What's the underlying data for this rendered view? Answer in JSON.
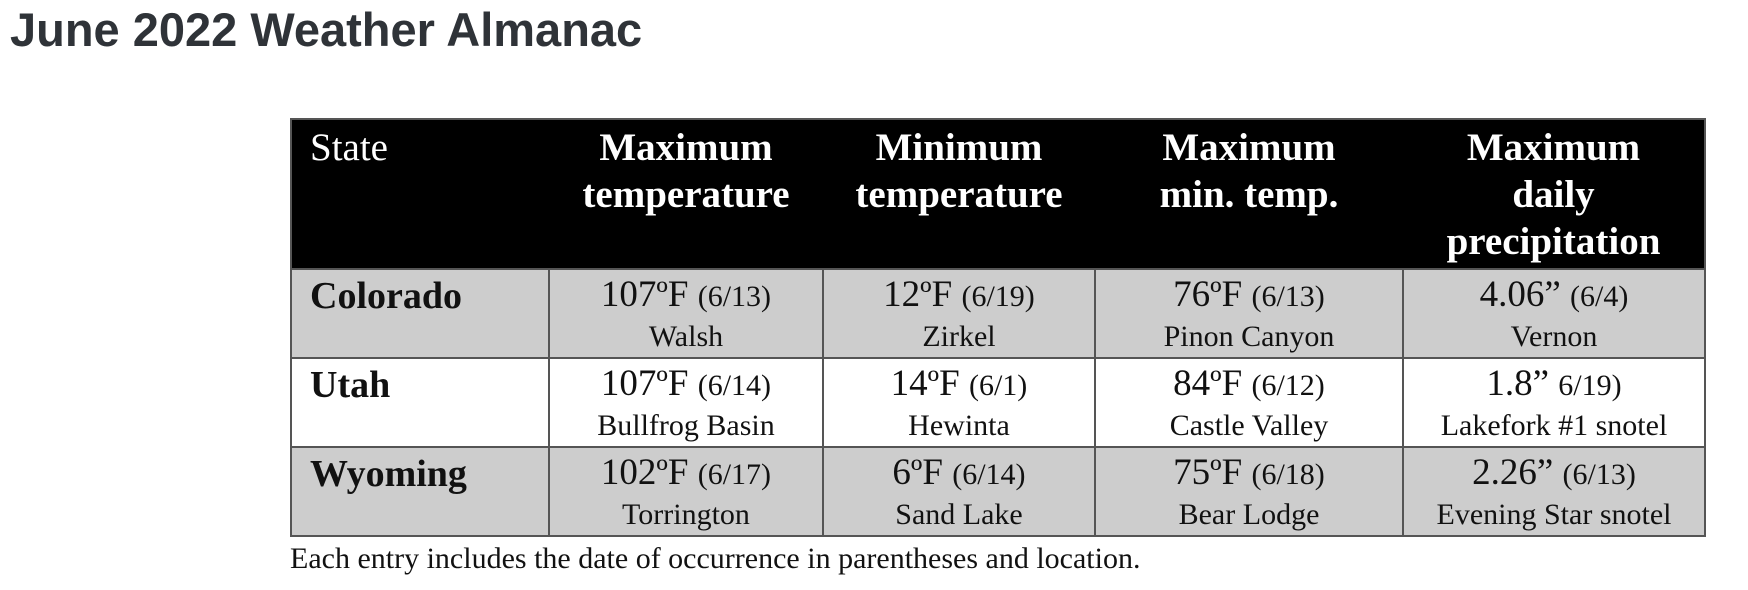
{
  "page_title": "June 2022 Weather Almanac",
  "table": {
    "headers": {
      "state": "State",
      "max_temp": [
        "Maximum",
        "temperature"
      ],
      "min_temp": [
        "Minimum",
        "temperature"
      ],
      "max_min_temp": [
        "Maximum",
        "min. temp."
      ],
      "max_daily_precip": [
        "Maximum",
        "daily",
        "precipitation"
      ]
    },
    "rows": [
      {
        "state": "Colorado",
        "max_temp": {
          "value": "107ºF",
          "date": "(6/13)",
          "location": "Walsh"
        },
        "min_temp": {
          "value": "12ºF",
          "date": "(6/19)",
          "location": "Zirkel"
        },
        "max_min_temp": {
          "value": "76ºF",
          "date": "(6/13)",
          "location": "Pinon Canyon"
        },
        "max_daily_precip": {
          "value": "4.06”",
          "date": "(6/4)",
          "location": "Vernon"
        }
      },
      {
        "state": "Utah",
        "max_temp": {
          "value": "107ºF",
          "date": "(6/14)",
          "location": "Bullfrog Basin"
        },
        "min_temp": {
          "value": "14ºF",
          "date": "(6/1)",
          "location": "Hewinta"
        },
        "max_min_temp": {
          "value": "84ºF",
          "date": "(6/12)",
          "location": "Castle Valley"
        },
        "max_daily_precip": {
          "value": "1.8”",
          "date": "6/19)",
          "location": "Lakefork #1 snotel"
        }
      },
      {
        "state": "Wyoming",
        "max_temp": {
          "value": "102ºF",
          "date": "(6/17)",
          "location": "Torrington"
        },
        "min_temp": {
          "value": "6ºF",
          "date": "(6/14)",
          "location": "Sand Lake"
        },
        "max_min_temp": {
          "value": "75ºF",
          "date": "(6/18)",
          "location": "Bear Lodge"
        },
        "max_daily_precip": {
          "value": "2.26”",
          "date": "(6/13)",
          "location": "Evening Star snotel"
        }
      }
    ],
    "caption": "Each entry includes the date of occurrence in parentheses and location."
  }
}
